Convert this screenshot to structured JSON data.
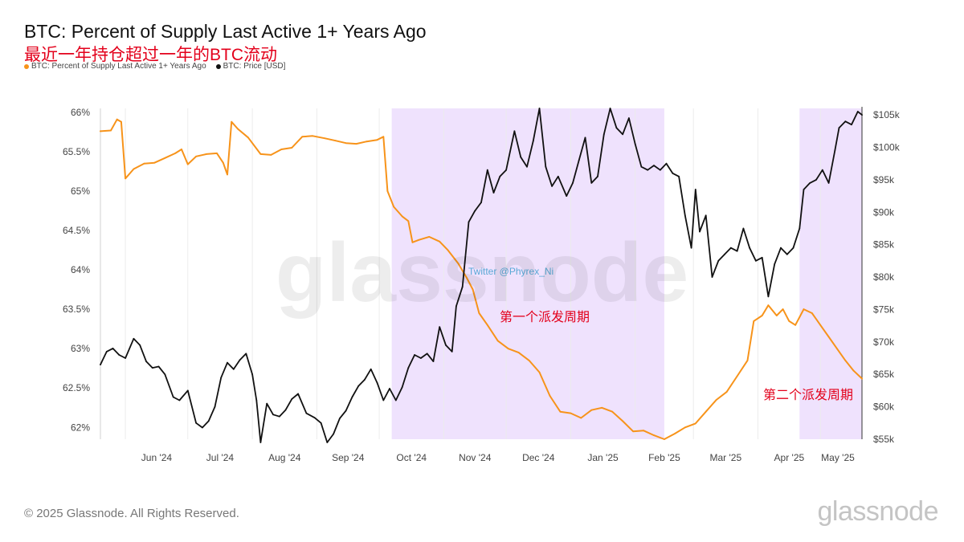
{
  "chart_data": {
    "type": "line",
    "title": "BTC: Percent of Supply Last Active 1+ Years Ago",
    "subtitle": "最近一年持仓超过一年的BTC流动",
    "x_labels": [
      "Jun '24",
      "Jul '24",
      "Aug '24",
      "Sep '24",
      "Oct '24",
      "Nov '24",
      "Dec '24",
      "Jan '25",
      "Feb '25",
      "Mar '25",
      "Apr '25",
      "May '25"
    ],
    "x_range": [
      "2024-05-20",
      "2025-05-21"
    ],
    "y_left": {
      "ticks": [
        "62%",
        "62.5%",
        "63%",
        "63.5%",
        "64%",
        "64.5%",
        "65%",
        "65.5%",
        "66%"
      ],
      "range": [
        61.85,
        66.05
      ]
    },
    "y_right": {
      "ticks": [
        "$55k",
        "$60k",
        "$65k",
        "$70k",
        "$75k",
        "$80k",
        "$85k",
        "$90k",
        "$95k",
        "$100k",
        "$105k"
      ],
      "range": [
        55000,
        106000
      ]
    },
    "grid": "vertical",
    "legend_position": "top-left",
    "highlight_periods": [
      {
        "start": "2024-10-07",
        "end": "2025-02-15",
        "label": "第一个派发周期"
      },
      {
        "start": "2025-04-21",
        "end": "2025-05-21",
        "label": "第二个派发周期"
      }
    ],
    "annotations": [
      "Twitter @Phyrex_Ni"
    ],
    "series": [
      {
        "name": "BTC: Percent of Supply Last Active 1+ Years Ago",
        "axis": "left",
        "color": "#f7931a",
        "points": [
          [
            "2024-05-20",
            65.76
          ],
          [
            "2024-05-25",
            65.77
          ],
          [
            "2024-05-28",
            65.91
          ],
          [
            "2024-05-30",
            65.88
          ],
          [
            "2024-06-01",
            65.16
          ],
          [
            "2024-06-05",
            65.28
          ],
          [
            "2024-06-10",
            65.35
          ],
          [
            "2024-06-15",
            65.36
          ],
          [
            "2024-06-20",
            65.42
          ],
          [
            "2024-06-25",
            65.48
          ],
          [
            "2024-06-28",
            65.53
          ],
          [
            "2024-07-01",
            65.34
          ],
          [
            "2024-07-05",
            65.44
          ],
          [
            "2024-07-10",
            65.47
          ],
          [
            "2024-07-15",
            65.48
          ],
          [
            "2024-07-18",
            65.36
          ],
          [
            "2024-07-20",
            65.21
          ],
          [
            "2024-07-22",
            65.88
          ],
          [
            "2024-07-25",
            65.79
          ],
          [
            "2024-07-30",
            65.68
          ],
          [
            "2024-08-05",
            65.47
          ],
          [
            "2024-08-10",
            65.46
          ],
          [
            "2024-08-15",
            65.53
          ],
          [
            "2024-08-20",
            65.55
          ],
          [
            "2024-08-25",
            65.69
          ],
          [
            "2024-08-30",
            65.7
          ],
          [
            "2024-09-05",
            65.67
          ],
          [
            "2024-09-10",
            65.64
          ],
          [
            "2024-09-15",
            65.61
          ],
          [
            "2024-09-20",
            65.6
          ],
          [
            "2024-09-25",
            65.63
          ],
          [
            "2024-09-30",
            65.65
          ],
          [
            "2024-10-03",
            65.69
          ],
          [
            "2024-10-05",
            65.0
          ],
          [
            "2024-10-08",
            64.8
          ],
          [
            "2024-10-12",
            64.68
          ],
          [
            "2024-10-15",
            64.62
          ],
          [
            "2024-10-17",
            64.35
          ],
          [
            "2024-10-20",
            64.38
          ],
          [
            "2024-10-25",
            64.42
          ],
          [
            "2024-10-30",
            64.36
          ],
          [
            "2024-11-03",
            64.25
          ],
          [
            "2024-11-08",
            64.08
          ],
          [
            "2024-11-12",
            63.9
          ],
          [
            "2024-11-15",
            63.75
          ],
          [
            "2024-11-18",
            63.45
          ],
          [
            "2024-11-22",
            63.3
          ],
          [
            "2024-11-27",
            63.1
          ],
          [
            "2024-12-02",
            63.0
          ],
          [
            "2024-12-07",
            62.95
          ],
          [
            "2024-12-12",
            62.85
          ],
          [
            "2024-12-17",
            62.7
          ],
          [
            "2024-12-22",
            62.4
          ],
          [
            "2024-12-27",
            62.2
          ],
          [
            "2025-01-01",
            62.18
          ],
          [
            "2025-01-06",
            62.12
          ],
          [
            "2025-01-11",
            62.22
          ],
          [
            "2025-01-16",
            62.25
          ],
          [
            "2025-01-21",
            62.2
          ],
          [
            "2025-01-26",
            62.08
          ],
          [
            "2025-01-31",
            61.95
          ],
          [
            "2025-02-05",
            61.96
          ],
          [
            "2025-02-10",
            61.9
          ],
          [
            "2025-02-15",
            61.85
          ],
          [
            "2025-02-20",
            61.92
          ],
          [
            "2025-02-25",
            62.0
          ],
          [
            "2025-03-02",
            62.05
          ],
          [
            "2025-03-07",
            62.2
          ],
          [
            "2025-03-12",
            62.35
          ],
          [
            "2025-03-17",
            62.45
          ],
          [
            "2025-03-22",
            62.65
          ],
          [
            "2025-03-27",
            62.85
          ],
          [
            "2025-03-30",
            63.35
          ],
          [
            "2025-04-03",
            63.42
          ],
          [
            "2025-04-06",
            63.55
          ],
          [
            "2025-04-10",
            63.42
          ],
          [
            "2025-04-13",
            63.5
          ],
          [
            "2025-04-16",
            63.35
          ],
          [
            "2025-04-19",
            63.3
          ],
          [
            "2025-04-23",
            63.5
          ],
          [
            "2025-04-27",
            63.45
          ],
          [
            "2025-05-01",
            63.3
          ],
          [
            "2025-05-05",
            63.15
          ],
          [
            "2025-05-09",
            63.0
          ],
          [
            "2025-05-13",
            62.85
          ],
          [
            "2025-05-17",
            62.72
          ],
          [
            "2025-05-21",
            62.62
          ]
        ]
      },
      {
        "name": "BTC: Price [USD]",
        "axis": "right",
        "color": "#111111",
        "points": [
          [
            "2024-05-20",
            66500
          ],
          [
            "2024-05-23",
            68500
          ],
          [
            "2024-05-26",
            69000
          ],
          [
            "2024-05-29",
            68000
          ],
          [
            "2024-06-01",
            67500
          ],
          [
            "2024-06-05",
            70500
          ],
          [
            "2024-06-08",
            69500
          ],
          [
            "2024-06-11",
            67000
          ],
          [
            "2024-06-14",
            66000
          ],
          [
            "2024-06-17",
            66200
          ],
          [
            "2024-06-20",
            65000
          ],
          [
            "2024-06-24",
            61500
          ],
          [
            "2024-06-27",
            61000
          ],
          [
            "2024-07-01",
            62500
          ],
          [
            "2024-07-05",
            57500
          ],
          [
            "2024-07-08",
            56800
          ],
          [
            "2024-07-11",
            57800
          ],
          [
            "2024-07-14",
            60000
          ],
          [
            "2024-07-17",
            64500
          ],
          [
            "2024-07-20",
            66800
          ],
          [
            "2024-07-23",
            65800
          ],
          [
            "2024-07-26",
            67200
          ],
          [
            "2024-07-29",
            68200
          ],
          [
            "2024-08-01",
            65000
          ],
          [
            "2024-08-03",
            61000
          ],
          [
            "2024-08-05",
            54500
          ],
          [
            "2024-08-08",
            60500
          ],
          [
            "2024-08-11",
            58800
          ],
          [
            "2024-08-14",
            58500
          ],
          [
            "2024-08-17",
            59500
          ],
          [
            "2024-08-20",
            61200
          ],
          [
            "2024-08-23",
            62000
          ],
          [
            "2024-08-27",
            59000
          ],
          [
            "2024-08-31",
            58300
          ],
          [
            "2024-09-03",
            57500
          ],
          [
            "2024-09-06",
            54500
          ],
          [
            "2024-09-09",
            55800
          ],
          [
            "2024-09-12",
            58200
          ],
          [
            "2024-09-15",
            59400
          ],
          [
            "2024-09-18",
            61500
          ],
          [
            "2024-09-21",
            63200
          ],
          [
            "2024-09-24",
            64200
          ],
          [
            "2024-09-27",
            65800
          ],
          [
            "2024-09-30",
            63700
          ],
          [
            "2024-10-03",
            61000
          ],
          [
            "2024-10-06",
            62800
          ],
          [
            "2024-10-09",
            61000
          ],
          [
            "2024-10-12",
            63000
          ],
          [
            "2024-10-15",
            66000
          ],
          [
            "2024-10-18",
            68000
          ],
          [
            "2024-10-21",
            67500
          ],
          [
            "2024-10-24",
            68200
          ],
          [
            "2024-10-27",
            67000
          ],
          [
            "2024-10-30",
            72300
          ],
          [
            "2024-11-02",
            69500
          ],
          [
            "2024-11-05",
            68500
          ],
          [
            "2024-11-07",
            75500
          ],
          [
            "2024-11-10",
            78500
          ],
          [
            "2024-11-13",
            88500
          ],
          [
            "2024-11-16",
            90200
          ],
          [
            "2024-11-19",
            91500
          ],
          [
            "2024-11-22",
            96500
          ],
          [
            "2024-11-25",
            93000
          ],
          [
            "2024-11-28",
            95500
          ],
          [
            "2024-12-01",
            96500
          ],
          [
            "2024-12-05",
            102500
          ],
          [
            "2024-12-08",
            98500
          ],
          [
            "2024-12-11",
            97000
          ],
          [
            "2024-12-14",
            101000
          ],
          [
            "2024-12-17",
            106000
          ],
          [
            "2024-12-20",
            97000
          ],
          [
            "2024-12-23",
            94000
          ],
          [
            "2024-12-26",
            95500
          ],
          [
            "2024-12-30",
            92500
          ],
          [
            "2025-01-02",
            94500
          ],
          [
            "2025-01-05",
            98000
          ],
          [
            "2025-01-08",
            101500
          ],
          [
            "2025-01-11",
            94500
          ],
          [
            "2025-01-14",
            95500
          ],
          [
            "2025-01-17",
            102000
          ],
          [
            "2025-01-20",
            106000
          ],
          [
            "2025-01-23",
            103000
          ],
          [
            "2025-01-26",
            102000
          ],
          [
            "2025-01-29",
            104500
          ],
          [
            "2025-02-01",
            100500
          ],
          [
            "2025-02-04",
            97000
          ],
          [
            "2025-02-07",
            96500
          ],
          [
            "2025-02-10",
            97200
          ],
          [
            "2025-02-13",
            96500
          ],
          [
            "2025-02-16",
            97500
          ],
          [
            "2025-02-19",
            96000
          ],
          [
            "2025-02-22",
            95500
          ],
          [
            "2025-02-25",
            89500
          ],
          [
            "2025-02-28",
            84500
          ],
          [
            "2025-03-02",
            93500
          ],
          [
            "2025-03-04",
            87000
          ],
          [
            "2025-03-07",
            89500
          ],
          [
            "2025-03-10",
            80000
          ],
          [
            "2025-03-13",
            82500
          ],
          [
            "2025-03-16",
            83500
          ],
          [
            "2025-03-19",
            84500
          ],
          [
            "2025-03-22",
            84000
          ],
          [
            "2025-03-25",
            87500
          ],
          [
            "2025-03-28",
            84500
          ],
          [
            "2025-03-31",
            82500
          ],
          [
            "2025-04-03",
            83000
          ],
          [
            "2025-04-06",
            77000
          ],
          [
            "2025-04-09",
            82000
          ],
          [
            "2025-04-12",
            84500
          ],
          [
            "2025-04-15",
            83500
          ],
          [
            "2025-04-18",
            84500
          ],
          [
            "2025-04-21",
            87500
          ],
          [
            "2025-04-23",
            93500
          ],
          [
            "2025-04-26",
            94500
          ],
          [
            "2025-04-29",
            95000
          ],
          [
            "2025-05-02",
            96500
          ],
          [
            "2025-05-05",
            94500
          ],
          [
            "2025-05-08",
            99500
          ],
          [
            "2025-05-10",
            103000
          ],
          [
            "2025-05-13",
            104000
          ],
          [
            "2025-05-16",
            103500
          ],
          [
            "2025-05-19",
            105500
          ],
          [
            "2025-05-21",
            105000
          ]
        ]
      }
    ]
  },
  "legend": {
    "items": [
      {
        "label": "BTC: Percent of Supply Last Active 1+ Years Ago",
        "color": "#f7931a"
      },
      {
        "label": "BTC: Price [USD]",
        "color": "#111111"
      }
    ]
  },
  "watermark": "glassnode",
  "footer": {
    "copyright": "© 2025 Glassnode. All Rights Reserved.",
    "logo": "glassnode"
  }
}
